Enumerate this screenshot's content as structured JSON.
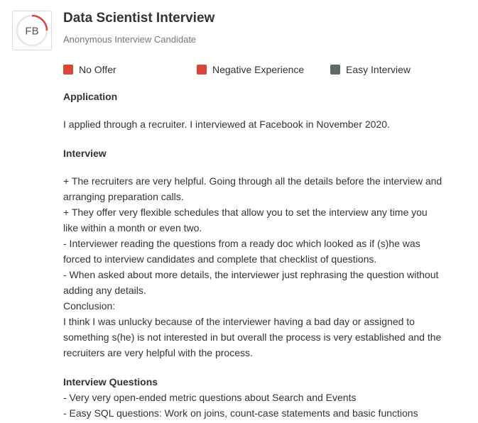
{
  "header": {
    "logo_text": "FB",
    "title": "Data Scientist Interview",
    "subtitle": "Anonymous Interview Candidate"
  },
  "badges": [
    {
      "label": "No Offer",
      "color": "#d9443b"
    },
    {
      "label": "Negative Experience",
      "color": "#d9443b"
    },
    {
      "label": "Easy Interview",
      "color": "#5f6a66"
    }
  ],
  "application": {
    "heading": "Application",
    "text": "I applied through a recruiter. I interviewed at Facebook in November 2020."
  },
  "interview": {
    "heading": "Interview",
    "lines": [
      "+ The recruiters are very helpful. Going through all the details before the interview and",
      "arranging preparation calls.",
      "+ They offer very flexible schedules that allow you to set the interview any time you",
      "like within a month or even two.",
      "- Interviewer reading the questions from a ready doc which looked as if (s)he was",
      "forced to interview candidates and complete that checklist of questions.",
      "- When asked about more details, the interviewer just rephrasing the question without",
      "adding any details.",
      "Conclusion:",
      "I think I was unlucky because of the interviewer having a bad day or assigned to",
      "something s(he) is not interested in but overall the process is very established and the",
      "recruiters are very helpful with the process."
    ]
  },
  "interview_questions": {
    "heading": "Interview Questions",
    "lines": [
      "- Very very open-ended metric questions about Search and Events",
      "- Easy SQL questions: Work on joins, count-case statements and basic functions"
    ]
  }
}
